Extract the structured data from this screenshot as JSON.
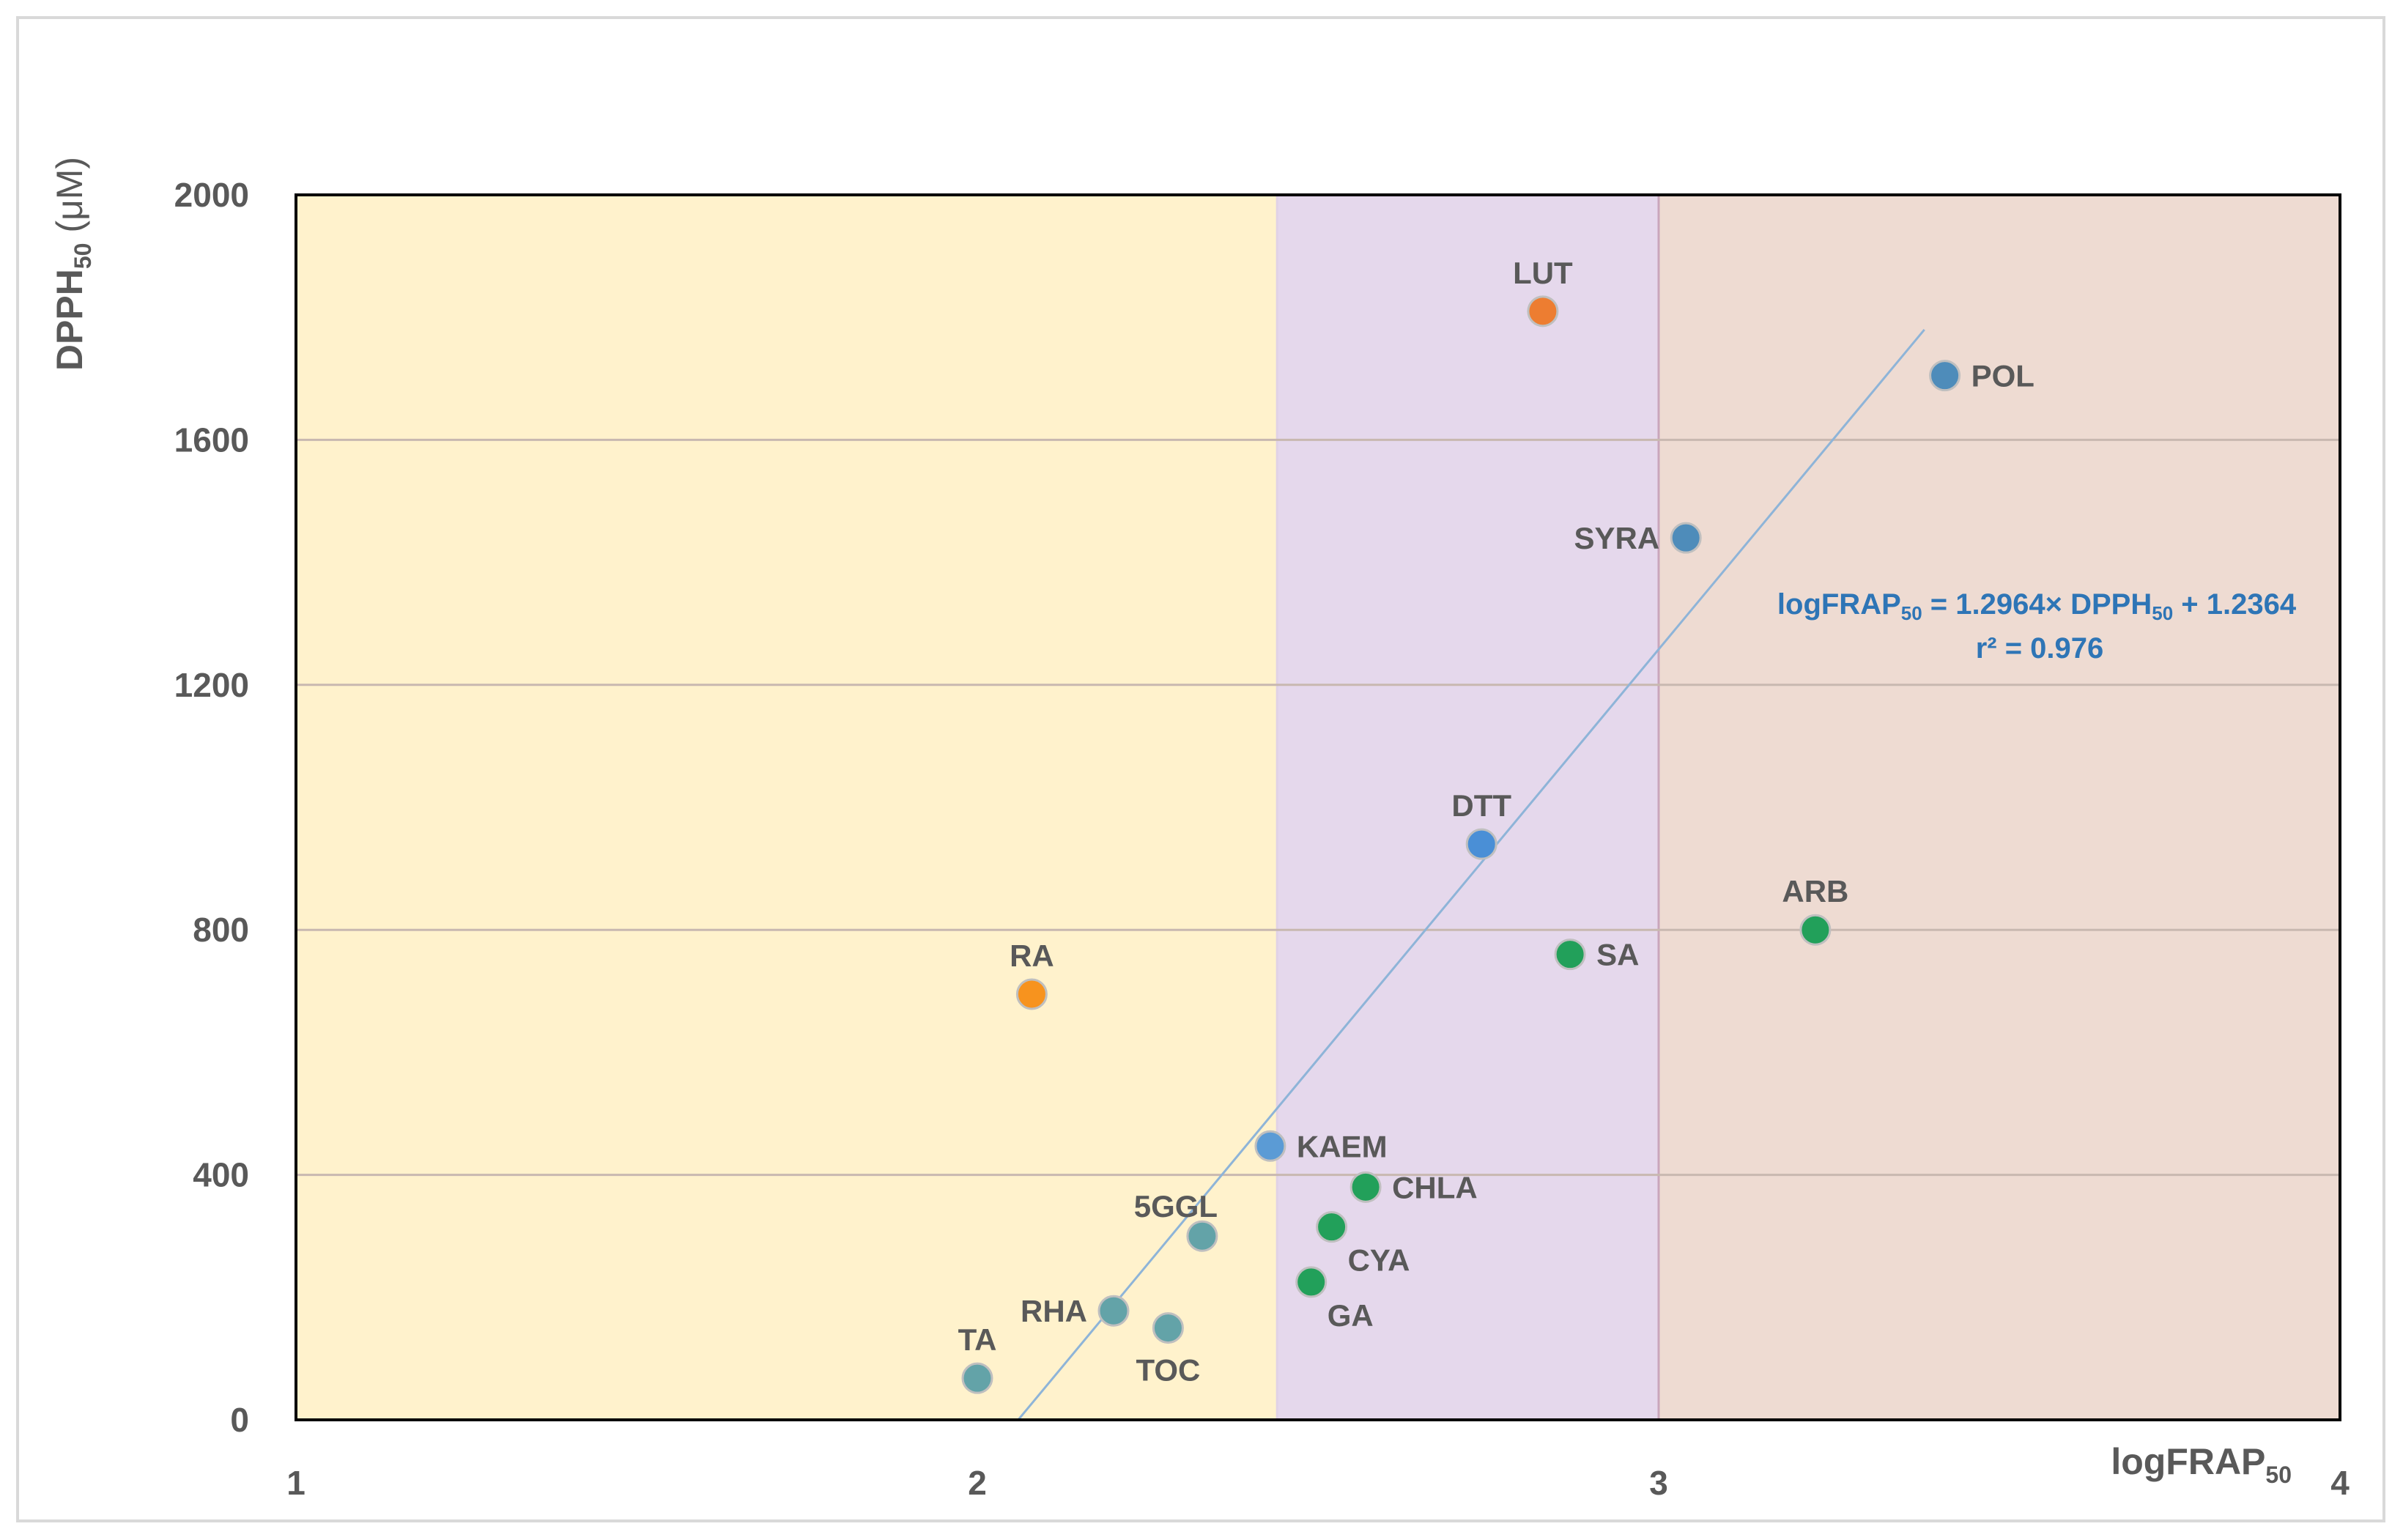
{
  "chart_data": {
    "type": "scatter",
    "title": "",
    "xlabel": "logFRAP",
    "xlabel_sub": "50",
    "ylabel": "DPPH",
    "ylabel_sub": "50",
    "ylabel_unit": " (μM)",
    "xlim": [
      1,
      4
    ],
    "ylim": [
      0,
      2000
    ],
    "xticks": [
      1,
      2,
      3,
      4
    ],
    "yticks": [
      0,
      400,
      800,
      1200,
      1600,
      2000
    ],
    "grid": "horizontal",
    "regions": [
      {
        "x_from": 1,
        "x_to": 2.44,
        "color": "#fff2cc"
      },
      {
        "x_from": 2.44,
        "x_to": 3.0,
        "color": "#e5d8ec"
      },
      {
        "x_from": 3.0,
        "x_to": 4.0,
        "color": "#eedbd2"
      }
    ],
    "points": [
      {
        "label": "LUT",
        "x": 2.83,
        "y": 1810,
        "color": "#ed7d31",
        "label_pos": "above"
      },
      {
        "label": "POL",
        "x": 3.42,
        "y": 1705,
        "color": "#4e8cba",
        "label_pos": "right"
      },
      {
        "label": "SYRA",
        "x": 3.04,
        "y": 1440,
        "color": "#4e8cba",
        "label_pos": "left"
      },
      {
        "label": "DTT",
        "x": 2.74,
        "y": 940,
        "color": "#4a8fd6",
        "label_pos": "above"
      },
      {
        "label": "ARB",
        "x": 3.23,
        "y": 800,
        "color": "#22a05a",
        "label_pos": "above"
      },
      {
        "label": "SA",
        "x": 2.87,
        "y": 760,
        "color": "#22a05a",
        "label_pos": "right"
      },
      {
        "label": "RA",
        "x": 2.08,
        "y": 695,
        "color": "#f7931e",
        "label_pos": "above"
      },
      {
        "label": "KAEM",
        "x": 2.43,
        "y": 447,
        "color": "#5b9bd5",
        "label_pos": "right"
      },
      {
        "label": "CHLA",
        "x": 2.57,
        "y": 380,
        "color": "#22a05a",
        "label_pos": "right"
      },
      {
        "label": "5GGL",
        "x": 2.33,
        "y": 300,
        "color": "#63a3a8",
        "label_pos": "above-left"
      },
      {
        "label": "CYA",
        "x": 2.52,
        "y": 315,
        "color": "#22a05a",
        "label_pos": "below-right"
      },
      {
        "label": "GA",
        "x": 2.49,
        "y": 225,
        "color": "#22a05a",
        "label_pos": "below-right"
      },
      {
        "label": "RHA",
        "x": 2.2,
        "y": 178,
        "color": "#63a3a8",
        "label_pos": "left"
      },
      {
        "label": "TOC",
        "x": 2.28,
        "y": 150,
        "color": "#63a3a8",
        "label_pos": "below"
      },
      {
        "label": "TA",
        "x": 2.0,
        "y": 68,
        "color": "#63a3a8",
        "label_pos": "above"
      }
    ],
    "trendline": {
      "x1": 2.06,
      "y1": 0,
      "x2": 3.39,
      "y2": 1780,
      "color": "#8eb4d8"
    },
    "annotation": {
      "line1_prefix": "logFRAP",
      "line1_sub1": "50",
      "line1_mid": " = 1.2964× DPPH",
      "line1_sub2": "50",
      "line1_suffix": " + 1.2364",
      "line2": "r² = 0.976"
    }
  }
}
